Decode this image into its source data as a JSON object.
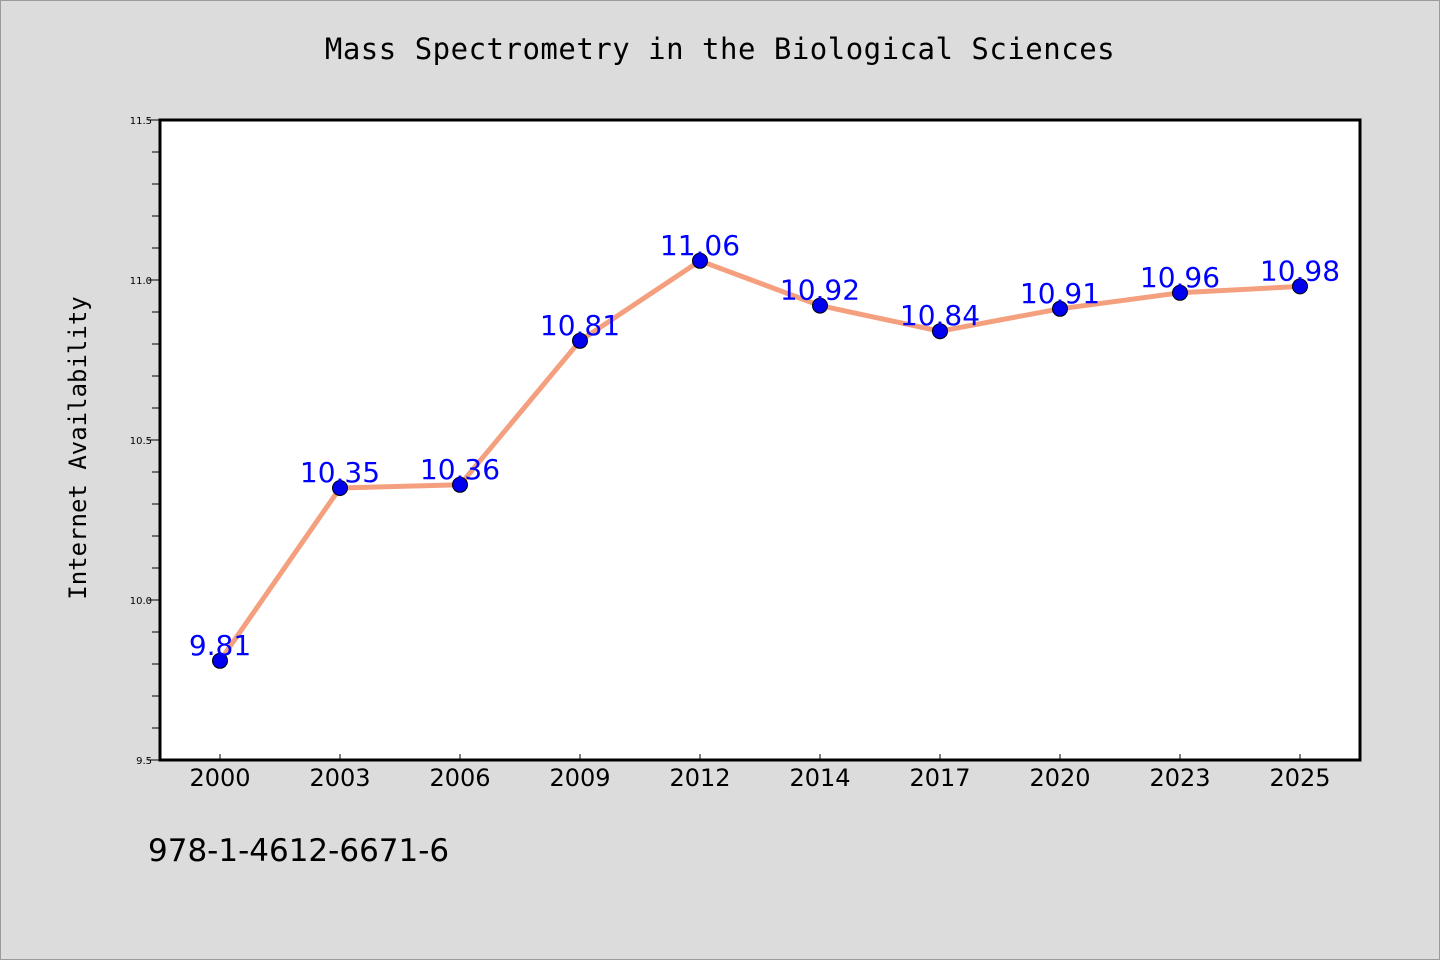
{
  "chart_data": {
    "type": "line",
    "title": "Mass Spectrometry in the Biological Sciences",
    "xlabel": "",
    "ylabel": "Internet Availability",
    "categories": [
      "2000",
      "2003",
      "2006",
      "2009",
      "2012",
      "2014",
      "2017",
      "2020",
      "2023",
      "2025"
    ],
    "series": [
      {
        "values": [
          9.81,
          10.35,
          10.36,
          10.81,
          11.06,
          10.92,
          10.84,
          10.91,
          10.96,
          10.98
        ],
        "line_color": "#f4a07e",
        "marker_color": "#0000ee"
      }
    ],
    "data_labels": [
      "9.81",
      "10.35",
      "10.36",
      "10.81",
      "11.06",
      "10.92",
      "10.84",
      "10.91",
      "10.96",
      "10.98"
    ],
    "data_label_color": "#0000ff",
    "ylim": [
      9.5,
      11.5
    ],
    "yticks": [
      "9.5",
      "10.0",
      "10.5",
      "11.0",
      "11.5"
    ],
    "grid": false,
    "legend": "none"
  },
  "footer_text": "978-1-4612-6671-6"
}
